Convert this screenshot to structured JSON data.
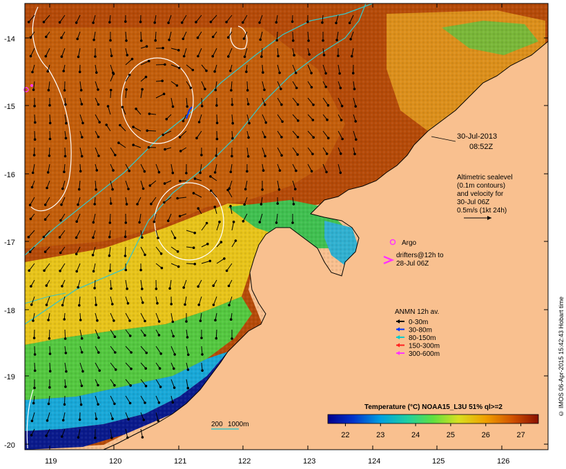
{
  "map": {
    "date": "30-Jul-2013",
    "time": "08:52Z",
    "lat_ticks": [
      "-14",
      "-15",
      "-16",
      "-17",
      "-18",
      "-19",
      "-20"
    ],
    "lon_ticks": [
      "119",
      "120",
      "121",
      "122",
      "123",
      "124",
      "125",
      "126"
    ],
    "altimetry": {
      "lines": [
        "Altimetric sealevel",
        "(0.1m contours)",
        "and velocity for",
        "30-Jul 06Z",
        "0.5m/s (1kt 24h)"
      ]
    },
    "argo_label": "Argo",
    "drifters": {
      "lines": [
        "drifters@12h to",
        "28-Jul 06Z"
      ]
    },
    "anmn": {
      "title": "ANMN 12h av.",
      "items": [
        {
          "label": "0-30m",
          "color": "#000000"
        },
        {
          "label": "30-80m",
          "color": "#0033ff"
        },
        {
          "label": "80-150m",
          "color": "#00cccc"
        },
        {
          "label": "150-300m",
          "color": "#ff2020"
        },
        {
          "label": "300-600m",
          "color": "#ff33ff"
        }
      ]
    },
    "scale_bar": {
      "label_a": "200",
      "label_b": "1000m"
    },
    "colorbar": {
      "title": "Temperature (°C) NOAA15_L3U 51% ql>=2",
      "ticks": [
        "22",
        "23",
        "24",
        "25",
        "26",
        "27"
      ],
      "min": 21.5,
      "max": 27.5
    },
    "credit": "© IMOS 06-Apr-2015 15:42:43 Hobart time",
    "colors": {
      "land": "#f9c08f",
      "sst_cold": "#0a1a8c",
      "sst_warm": "#a52a00",
      "contour": "#ffffff",
      "isobath": "#39c6c6"
    }
  }
}
